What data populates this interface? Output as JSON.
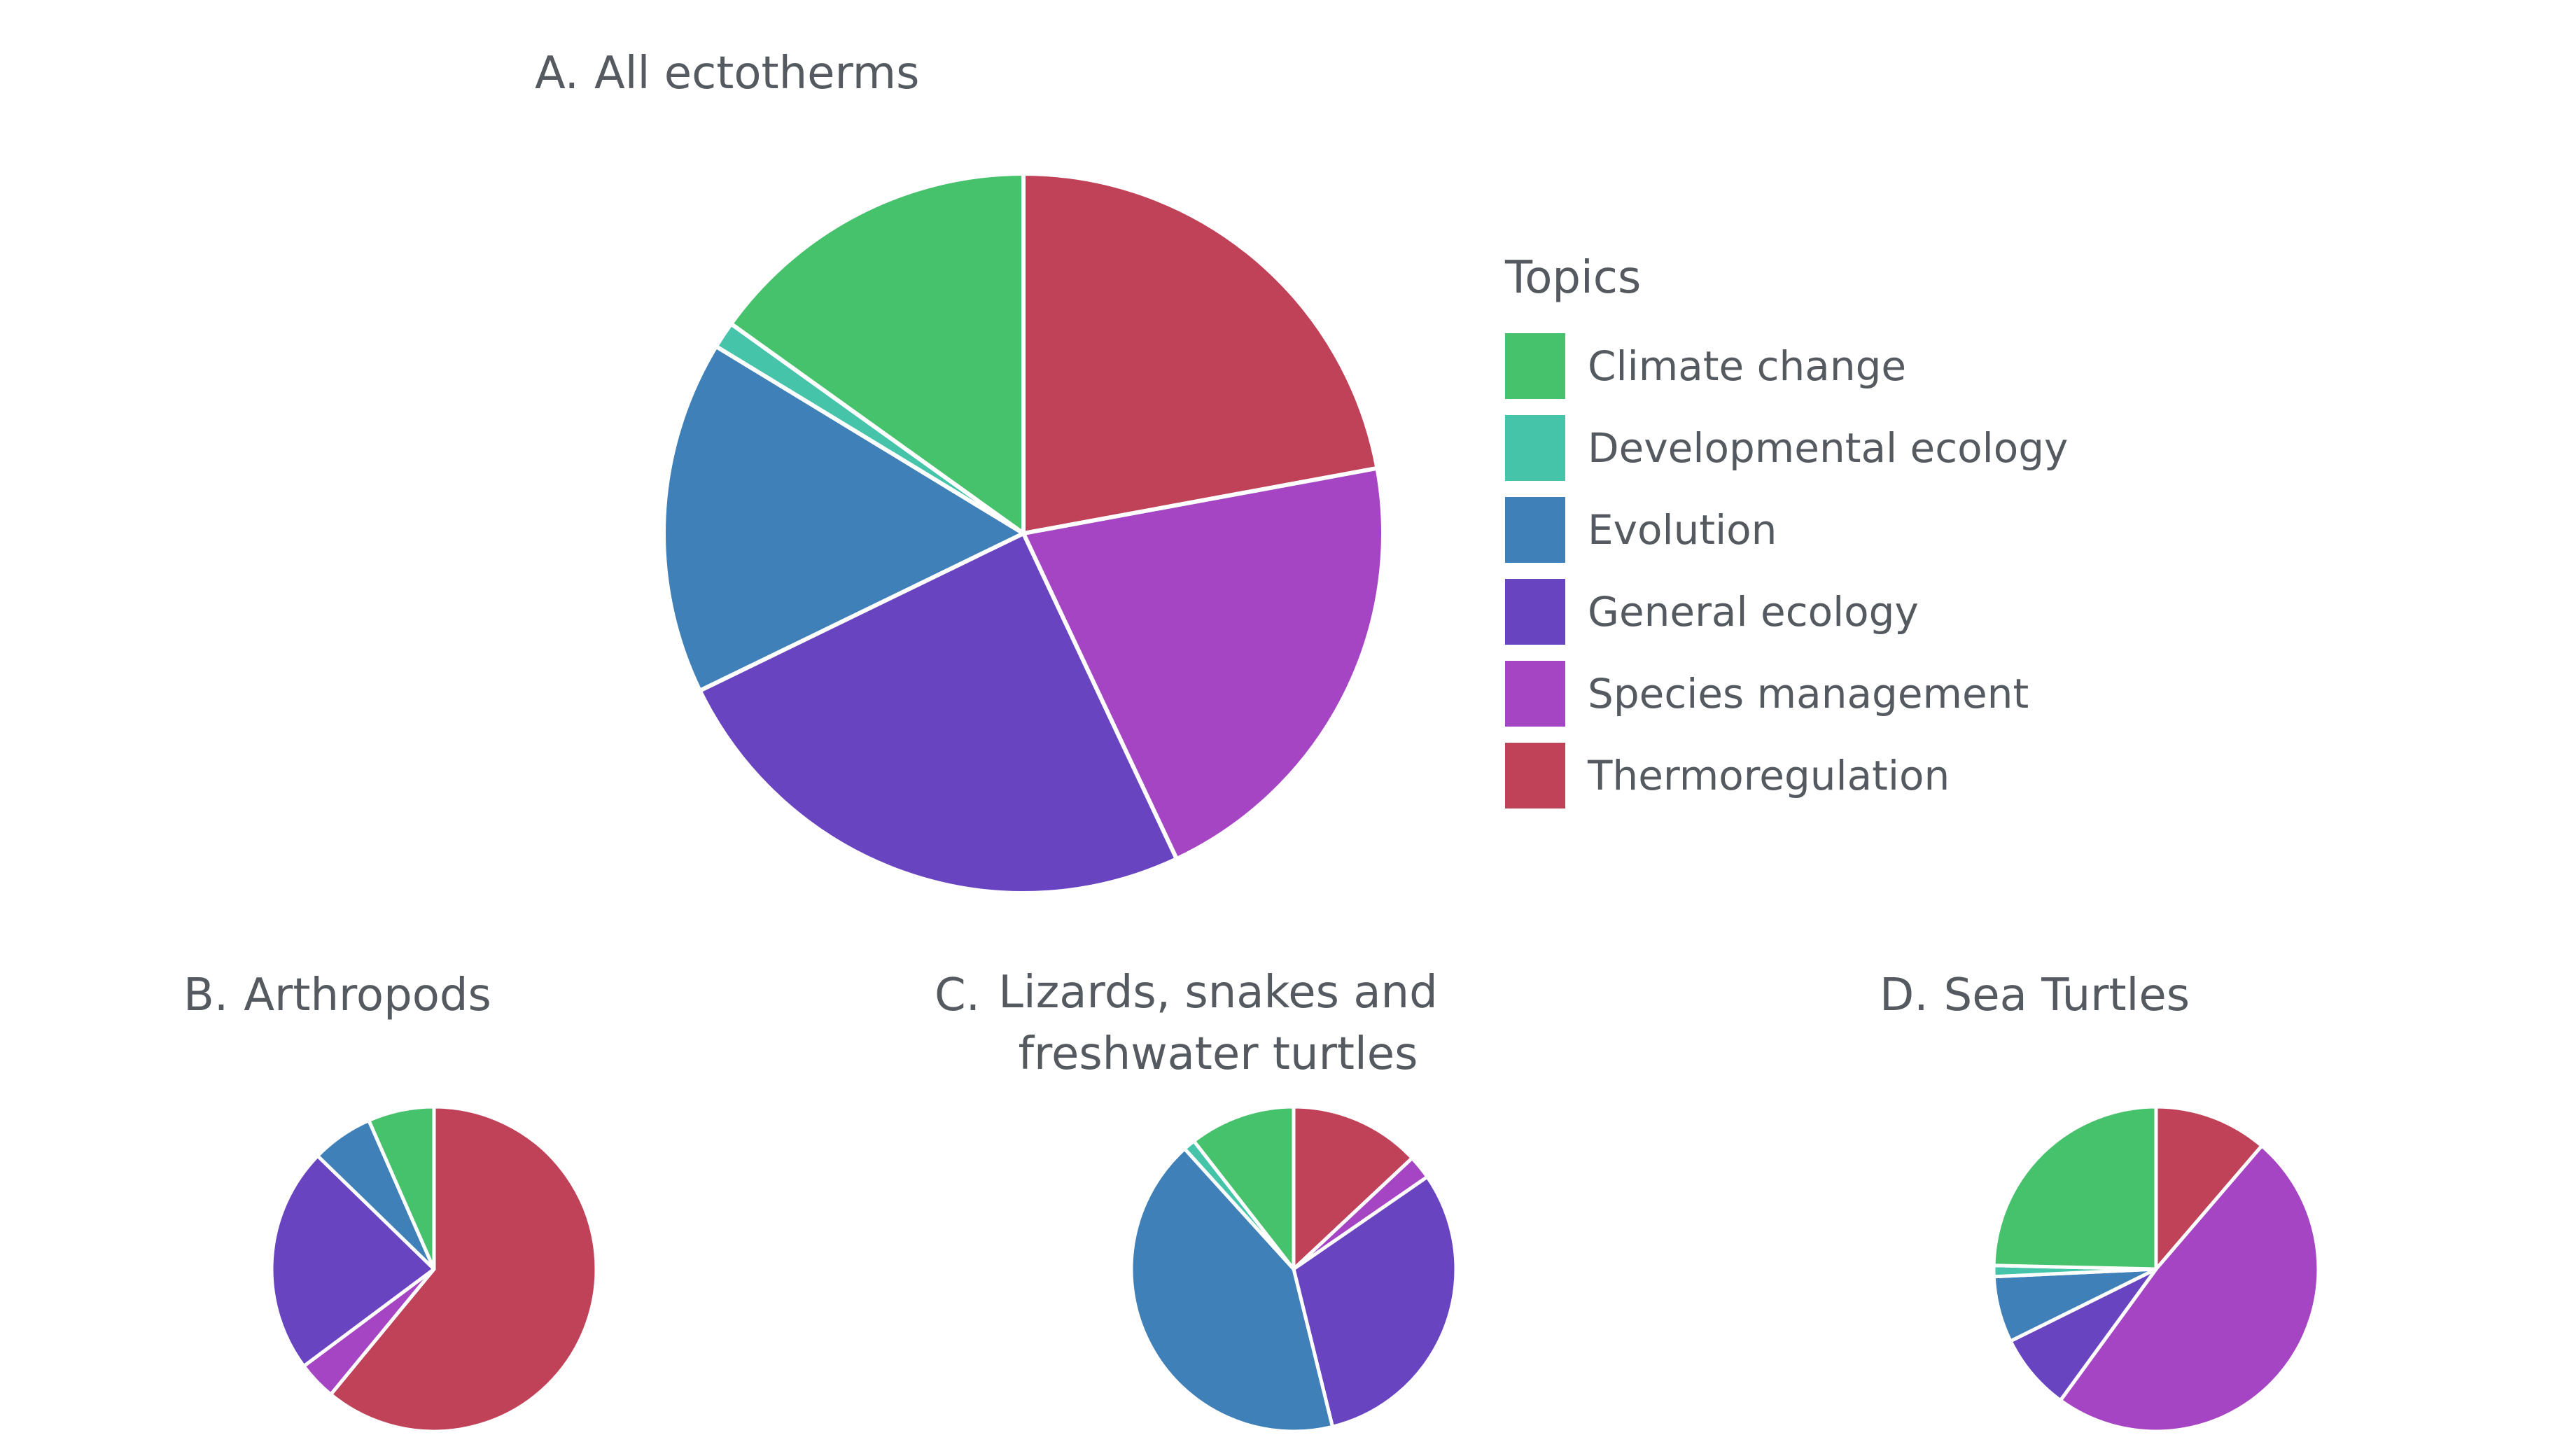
{
  "chart_data": [
    {
      "type": "pie",
      "id": "A",
      "label_prefix": "A.",
      "title": "All ectotherms",
      "categories": [
        "Thermoregulation",
        "Species management",
        "General ecology",
        "Evolution",
        "Developmental ecology",
        "Climate change"
      ],
      "values": [
        22.1,
        20.9,
        24.8,
        15.9,
        1.2,
        15.1
      ]
    },
    {
      "type": "pie",
      "id": "B",
      "label_prefix": "B.",
      "title": "Arthropods",
      "categories": [
        "Thermoregulation",
        "Species management",
        "General ecology",
        "Evolution",
        "Developmental ecology",
        "Climate change"
      ],
      "values": [
        55.6,
        3.5,
        20.5,
        5.6,
        0,
        6.0
      ]
    },
    {
      "type": "pie",
      "id": "C",
      "label_prefix": "C.",
      "title": "Lizards, snakes and freshwater turtles",
      "categories": [
        "Thermoregulation",
        "Species management",
        "General ecology",
        "Evolution",
        "Developmental ecology",
        "Climate change"
      ],
      "values": [
        11.0,
        2.0,
        26.0,
        35.6,
        1.0,
        8.9
      ]
    },
    {
      "type": "pie",
      "id": "D",
      "label_prefix": "D.",
      "title": "Sea Turtles",
      "categories": [
        "Thermoregulation",
        "Species management",
        "General ecology",
        "Evolution",
        "Developmental ecology",
        "Climate change"
      ],
      "values": [
        10.3,
        44.5,
        7.0,
        6.0,
        1.0,
        22.5
      ]
    }
  ],
  "legend": {
    "title": "Topics",
    "items": [
      {
        "label": "Climate change",
        "color": "#45c26b"
      },
      {
        "label": "Developmental ecology",
        "color": "#45c4a9"
      },
      {
        "label": "Evolution",
        "color": "#3f80b8"
      },
      {
        "label": "General ecology",
        "color": "#6844c1"
      },
      {
        "label": "Species management",
        "color": "#a645c4"
      },
      {
        "label": "Thermoregulation",
        "color": "#c04258"
      }
    ]
  },
  "colors": {
    "Thermoregulation": "#c04258",
    "Species management": "#a645c4",
    "General ecology": "#6844c1",
    "Evolution": "#3f80b8",
    "Developmental ecology": "#45c4a9",
    "Climate change": "#45c26b"
  }
}
